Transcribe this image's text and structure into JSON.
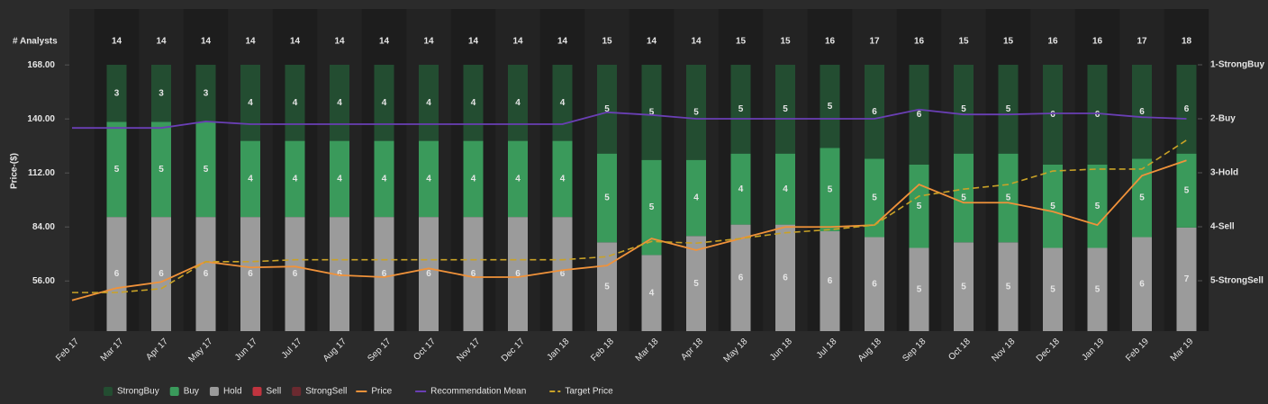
{
  "chart_data": {
    "type": "bar",
    "stacked": true,
    "normalized": true,
    "count_label": "# Analysts",
    "ylabel": "Price-($)",
    "categories": [
      "Feb 17",
      "Mar 17",
      "Apr 17",
      "May 17",
      "Jun 17",
      "Jul 17",
      "Aug 17",
      "Sep 17",
      "Oct 17",
      "Nov 17",
      "Dec 17",
      "Jan 18",
      "Feb 18",
      "Mar 18",
      "Apr 18",
      "May 18",
      "Jun 18",
      "Jul 18",
      "Aug 18",
      "Sep 18",
      "Oct 18",
      "Nov 18",
      "Dec 18",
      "Jan 19",
      "Feb 19",
      "Mar 19"
    ],
    "analyst_counts": [
      null,
      14,
      14,
      14,
      14,
      14,
      14,
      14,
      14,
      14,
      14,
      14,
      15,
      14,
      14,
      15,
      15,
      16,
      17,
      16,
      15,
      15,
      16,
      16,
      17,
      18
    ],
    "ylim": [
      30,
      197
    ],
    "yticks": [
      {
        "value": 56,
        "label": "56.00"
      },
      {
        "value": 84,
        "label": "84.00"
      },
      {
        "value": 112,
        "label": "112.00"
      },
      {
        "value": 140,
        "label": "140.00"
      },
      {
        "value": 168,
        "label": "168.00"
      }
    ],
    "y2lim": [
      5.933,
      -0.033
    ],
    "y2ticks": [
      {
        "value": 1,
        "label": "1-StrongBuy"
      },
      {
        "value": 2,
        "label": "2-Buy"
      },
      {
        "value": 3,
        "label": "3-Hold"
      },
      {
        "value": 4,
        "label": "4-Sell"
      },
      {
        "value": 5,
        "label": "5-StrongSell"
      }
    ],
    "legend": "bottom",
    "series": [
      {
        "name": "StrongBuy",
        "type": "bar",
        "color": "#234d31",
        "values": [
          null,
          3,
          3,
          3,
          4,
          4,
          4,
          4,
          4,
          4,
          4,
          4,
          5,
          5,
          5,
          5,
          5,
          5,
          6,
          6,
          5,
          5,
          6,
          6,
          6,
          6
        ]
      },
      {
        "name": "Buy",
        "type": "bar",
        "color": "#3a9a5b",
        "values": [
          null,
          5,
          5,
          5,
          4,
          4,
          4,
          4,
          4,
          4,
          4,
          4,
          5,
          5,
          4,
          4,
          4,
          5,
          5,
          5,
          5,
          5,
          5,
          5,
          5,
          5
        ]
      },
      {
        "name": "Hold",
        "type": "bar",
        "color": "#9b9b9b",
        "values": [
          null,
          6,
          6,
          6,
          6,
          6,
          6,
          6,
          6,
          6,
          6,
          6,
          5,
          4,
          5,
          6,
          6,
          6,
          6,
          5,
          5,
          5,
          5,
          5,
          6,
          7
        ]
      },
      {
        "name": "Sell",
        "type": "bar",
        "color": "#c0343f",
        "values": [
          null,
          0,
          0,
          0,
          0,
          0,
          0,
          0,
          0,
          0,
          0,
          0,
          0,
          0,
          0,
          0,
          0,
          0,
          0,
          0,
          0,
          0,
          0,
          0,
          0,
          0
        ]
      },
      {
        "name": "StrongSell",
        "type": "bar",
        "color": "#6b2a30",
        "values": [
          null,
          0,
          0,
          0,
          0,
          0,
          0,
          0,
          0,
          0,
          0,
          0,
          0,
          0,
          0,
          0,
          0,
          0,
          0,
          0,
          0,
          0,
          0,
          0,
          0,
          0
        ]
      },
      {
        "name": "Price",
        "type": "line",
        "color": "#f0923a",
        "values": [
          46,
          52.3,
          55.5,
          66,
          63,
          63.5,
          59,
          58,
          62.5,
          58,
          58,
          61.6,
          64,
          78,
          72,
          78,
          84,
          84,
          85,
          106,
          96.6,
          96.6,
          92,
          85,
          110.6,
          118.5
        ]
      },
      {
        "name": "Recommendation Mean",
        "type": "line",
        "axis": "y2",
        "color": "#6a3fb5",
        "values": [
          2.17,
          2.17,
          2.17,
          2.05,
          2.1,
          2.1,
          2.1,
          2.1,
          2.1,
          2.1,
          2.1,
          2.1,
          1.88,
          1.93,
          2.0,
          2.0,
          2.0,
          2.0,
          2.0,
          1.83,
          1.92,
          1.92,
          1.9,
          1.9,
          1.97,
          2.0
        ]
      },
      {
        "name": "Target Price",
        "type": "line",
        "dashed": true,
        "color": "#c9a227",
        "values": [
          50,
          50,
          52,
          66,
          66,
          67,
          67,
          67,
          67,
          67,
          67,
          67,
          68.6,
          76.5,
          75.6,
          78,
          81,
          82.6,
          85,
          100,
          103.6,
          106,
          113,
          114,
          114,
          129
        ]
      }
    ]
  }
}
